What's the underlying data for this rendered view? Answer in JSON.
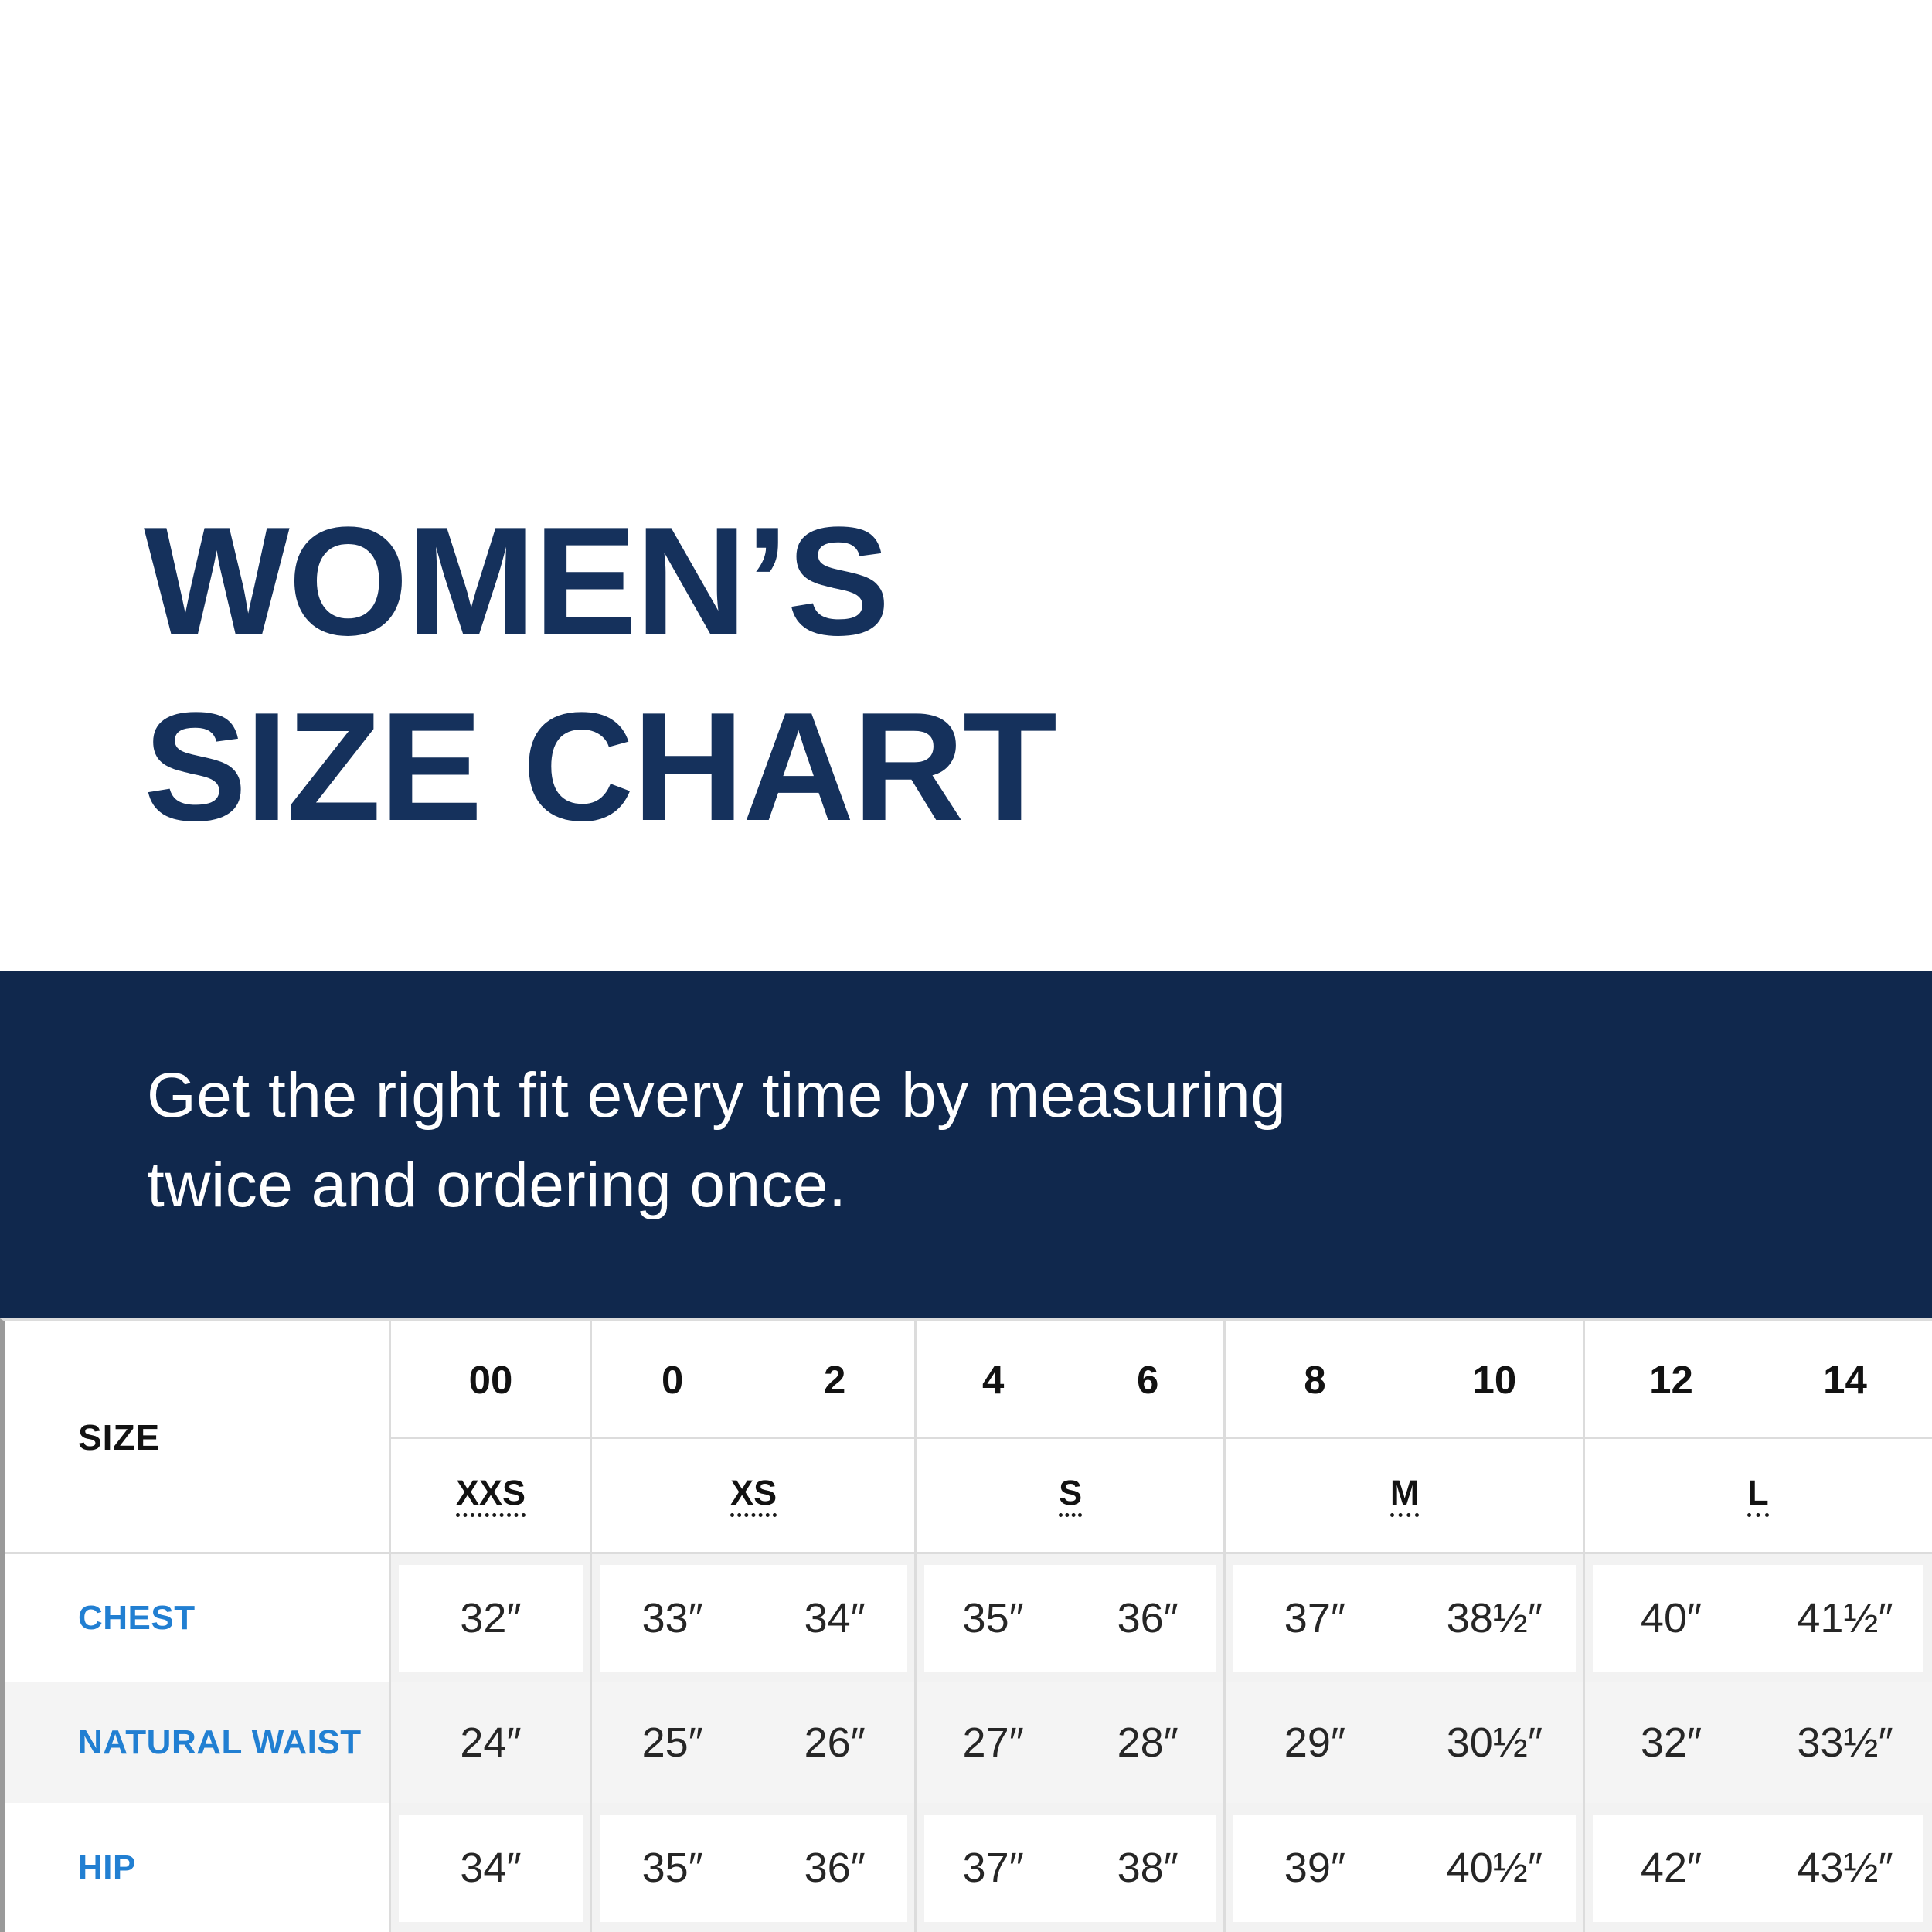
{
  "title": {
    "line1": "WOMEN’S",
    "line2": "SIZE CHART"
  },
  "banner": {
    "line1": "Get the right fit every time by measuring",
    "line2": "twice and ordering once."
  },
  "table": {
    "corner_label": "SIZE",
    "size_groups": [
      {
        "letter": "XXS",
        "numbers": [
          "00"
        ]
      },
      {
        "letter": "XS",
        "numbers": [
          "0",
          "2"
        ]
      },
      {
        "letter": "S",
        "numbers": [
          "4",
          "6"
        ]
      },
      {
        "letter": "M",
        "numbers": [
          "8",
          "10"
        ]
      },
      {
        "letter": "L",
        "numbers": [
          "12",
          "14"
        ]
      }
    ],
    "rows": [
      {
        "label": "CHEST",
        "values": [
          "32″",
          "33″",
          "34″",
          "35″",
          "36″",
          "37″",
          "38½″",
          "40″",
          "41½″"
        ]
      },
      {
        "label": "NATURAL WAIST",
        "values": [
          "24″",
          "25″",
          "26″",
          "27″",
          "28″",
          "29″",
          "30½″",
          "32″",
          "33½″"
        ]
      },
      {
        "label": "HIP",
        "values": [
          "34″",
          "35″",
          "36″",
          "37″",
          "38″",
          "39″",
          "40½″",
          "42″",
          "43½″"
        ]
      }
    ]
  },
  "colors": {
    "navy_banner": "#10284d",
    "navy_title": "#15315c",
    "label_blue": "#217fd2",
    "zebra_gray": "#f4f4f4",
    "frame_gray": "#f2f2f2",
    "border_gray": "#dcdcdc",
    "text_dark": "#121212"
  }
}
